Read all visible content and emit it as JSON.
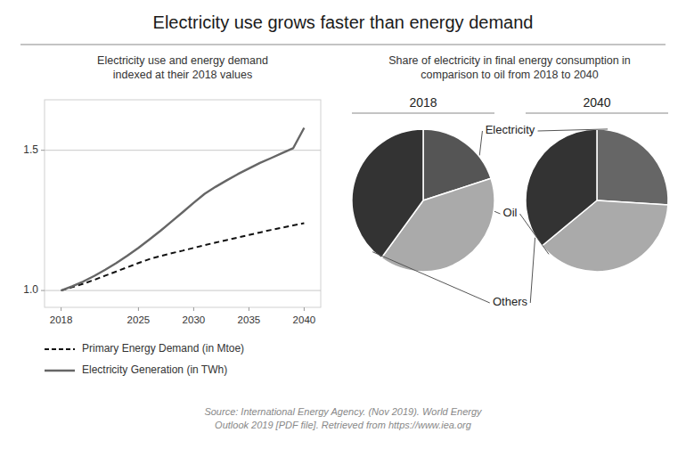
{
  "title": "Electricity use grows faster than energy demand",
  "annotations": [
    "Source: International Energy Agency. (Nov 2019). World Energy\nOutlook 2019 [PDF file]. Retrieved from https://www.iea.org"
  ],
  "chart_data": [
    {
      "type": "line",
      "subtitle": "Electricity use and energy demand\nindexed at their 2018 values",
      "x": [
        2018,
        2019,
        2020,
        2021,
        2022,
        2023,
        2024,
        2025,
        2026,
        2027,
        2028,
        2029,
        2030,
        2031,
        2032,
        2033,
        2034,
        2035,
        2036,
        2037,
        2038,
        2039,
        2040
      ],
      "series": [
        {
          "name": "Primary Energy Demand (in Mtoe)",
          "color": "#111111",
          "line_style": "dashed",
          "values": [
            1.0,
            1.012,
            1.024,
            1.038,
            1.053,
            1.068,
            1.083,
            1.098,
            1.112,
            1.123,
            1.133,
            1.142,
            1.152,
            1.162,
            1.171,
            1.18,
            1.189,
            1.198,
            1.207,
            1.216,
            1.224,
            1.232,
            1.24
          ]
        },
        {
          "name": "Electricity Generation (in TWh)",
          "color": "#666666",
          "line_style": "solid",
          "values": [
            1.0,
            1.015,
            1.032,
            1.052,
            1.074,
            1.098,
            1.124,
            1.152,
            1.182,
            1.213,
            1.246,
            1.279,
            1.313,
            1.345,
            1.37,
            1.393,
            1.415,
            1.435,
            1.455,
            1.472,
            1.49,
            1.507,
            1.58
          ]
        }
      ],
      "xlim": [
        2016.5,
        2041.5
      ],
      "xticks": [
        2018,
        2025,
        2030,
        2035,
        2040
      ],
      "ylim": [
        0.94,
        1.68
      ],
      "yticks": [
        {
          "value": 1.0,
          "label": "1.0"
        },
        {
          "value": 1.5,
          "label": "1.5"
        }
      ],
      "grid": true,
      "legend": "bottom"
    },
    {
      "type": "pie",
      "subtitle": "Share of electricity in final energy consumption in\ncomparison to oil from 2018 to 2040",
      "categories": [
        "Electricity",
        "Oil",
        "Others"
      ],
      "series": [
        {
          "name": "2018",
          "values": [
            0.2,
            0.4,
            0.4
          ],
          "colors": [
            "#555555",
            "#aaaaaa",
            "#333333"
          ]
        },
        {
          "name": "2040",
          "values": [
            0.26,
            0.38,
            0.36
          ],
          "colors": [
            "#666666",
            "#aaaaaa",
            "#333333"
          ]
        }
      ]
    }
  ]
}
